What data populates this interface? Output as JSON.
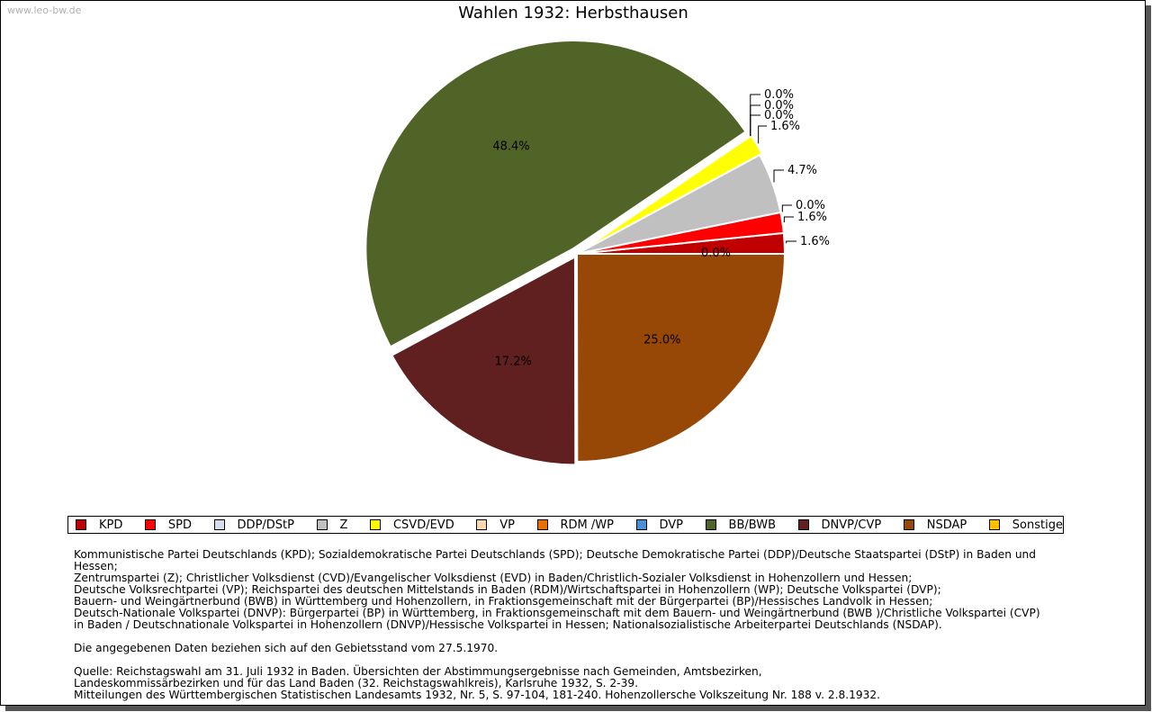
{
  "watermark": "www.leo-bw.de",
  "chart_data": {
    "type": "pie",
    "title": "Wahlen 1932: Herbsthausen",
    "slices": [
      {
        "name": "KPD",
        "value": 1.6,
        "label": "1.6%",
        "color": "#c00000"
      },
      {
        "name": "SPD",
        "value": 1.6,
        "label": "1.6%",
        "color": "#ff0000"
      },
      {
        "name": "DDP/DStP",
        "value": 0.0,
        "label": "0.0%",
        "color": "#d6dcec"
      },
      {
        "name": "Z",
        "value": 4.7,
        "label": "4.7%",
        "color": "#c0c0c0"
      },
      {
        "name": "CSVD/EVD",
        "value": 1.6,
        "label": "1.6%",
        "color": "#ffff00"
      },
      {
        "name": "VP",
        "value": 0.0,
        "label": "0.0%",
        "color": "#ffd8b0"
      },
      {
        "name": "RDM /WP",
        "value": 0.0,
        "label": "0.0%",
        "color": "#e87000"
      },
      {
        "name": "DVP",
        "value": 0.0,
        "label": "0.0%",
        "color": "#4a90d9"
      },
      {
        "name": "BB/BWB",
        "value": 48.4,
        "label": "48.4%",
        "color": "#506428"
      },
      {
        "name": "DNVP/CVP",
        "value": 17.2,
        "label": "17.2%",
        "color": "#602020"
      },
      {
        "name": "NSDAP",
        "value": 25.0,
        "label": "25.0%",
        "color": "#974807"
      },
      {
        "name": "Sonstige",
        "value": 0.0,
        "label": "0.0%",
        "color": "#ffc000"
      }
    ],
    "legend_position": "bottom"
  },
  "notes": {
    "parties": [
      "Kommunistische Partei Deutschlands (KPD); Sozialdemokratische Partei Deutschlands (SPD); Deutsche Demokratische Partei (DDP)/Deutsche Staatspartei (DStP) in Baden und Hessen;",
      "Zentrumspartei (Z); Christlicher Volksdienst (CVD)/Evangelischer Volksdienst (EVD) in Baden/Christlich-Sozialer Volksdienst in Hohenzollern und Hessen;",
      "Deutsche Volksrechtpartei (VP); Reichspartei des deutschen Mittelstands in Baden (RDM)/Wirtschaftspartei in Hohenzollern (WP); Deutsche Volkspartei (DVP);",
      "Bauern- und Weingärtnerbund (BWB) in Württemberg und Hohenzollern, in Fraktionsgemeinschaft mit der Bürgerpartei (BP)/Hessisches Landvolk in Hessen;",
      "Deutsch-Nationale Volkspartei (DNVP): Bürgerpartei (BP) in Württemberg, in Fraktionsgemeinschaft mit dem Bauern- und Weingärtnerbund (BWB )/Christliche Volkspartei (CVP)",
      "in Baden / Deutschnationale Volkspartei in Hohenzollern (DNVP)/Hessische Volkspartei in Hessen; Nationalsozialistische Arbeiterpartei Deutschlands (NSDAP)."
    ],
    "gebietsstand": "Die angegebenen Daten beziehen sich auf den Gebietsstand vom 27.5.1970.",
    "quelle": [
      "Quelle: Reichstagswahl am 31. Juli 1932 in Baden. Übersichten der Abstimmungsergebnisse nach Gemeinden, Amtsbezirken,",
      "Landeskommissärbezirken und für das Land Baden (32. Reichstagswahlkreis), Karlsruhe 1932, S. 2-39.",
      "Mitteilungen des Württembergischen Statistischen Landesamts 1932, Nr. 5, S. 97-104, 181-240. Hohenzollersche Volkszeitung Nr. 188 v. 2.8.1932."
    ]
  }
}
